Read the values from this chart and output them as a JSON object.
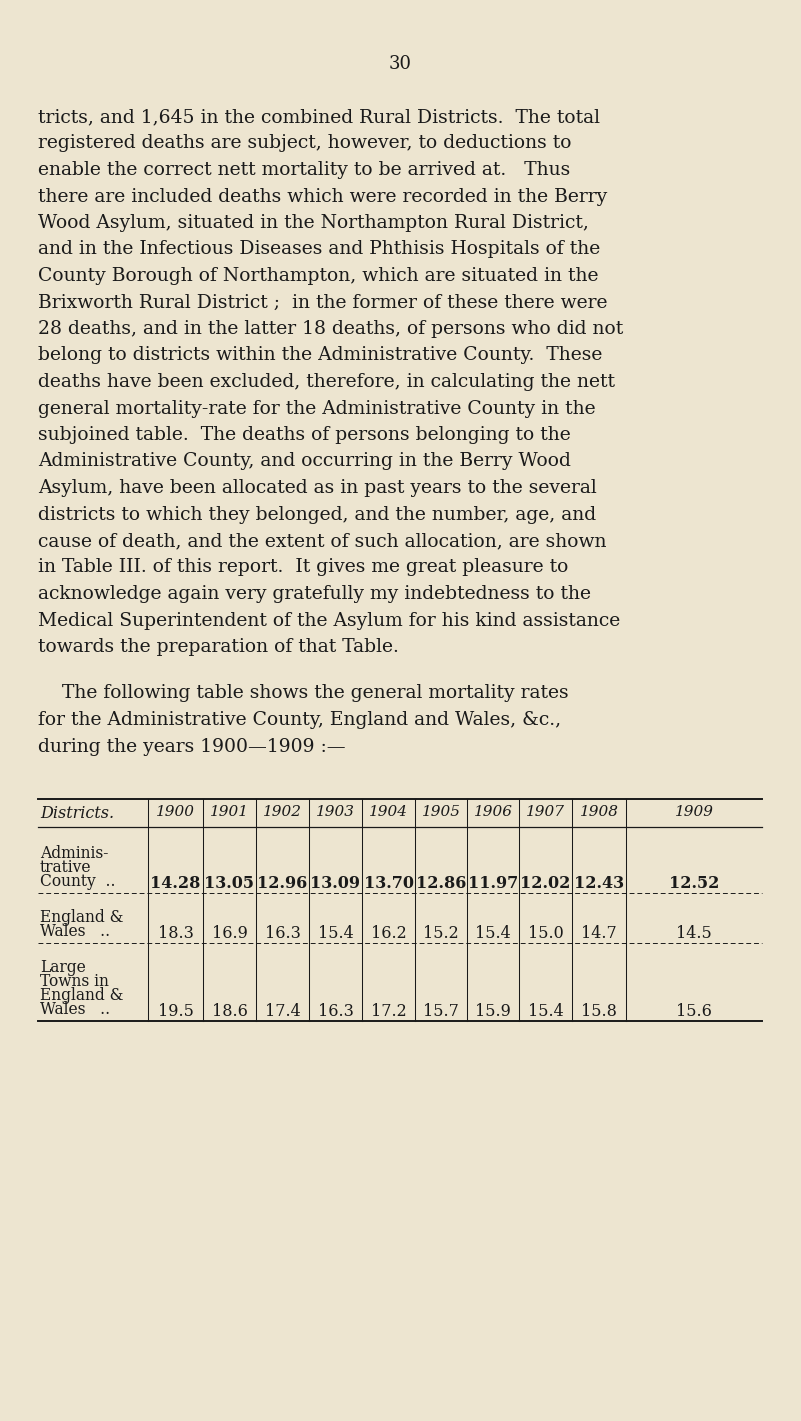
{
  "page_number": "30",
  "background_color": "#ede5d0",
  "text_color": "#1a1a1a",
  "paragraph_lines": [
    "tricts, and 1,645 in the combined Rural Districts.  The total",
    "registered deaths are subject, however, to deductions to",
    "enable the correct nett mortality to be arrived at.   Thus",
    "there are included deaths which were recorded in the Berry",
    "Wood Asylum, situated in the Northampton Rural District,",
    "and in the Infectious Diseases and Phthisis Hospitals of the",
    "County Borough of Northampton, which are situated in the",
    "Brixworth Rural District ;  in the former of these there were",
    "28 deaths, and in the latter 18 deaths, of persons who did not",
    "belong to districts within the Administrative County.  These",
    "deaths have been excluded, therefore, in calculating the nett",
    "general mortality-rate for the Administrative County in the",
    "subjoined table.  The deaths of persons belonging to the",
    "Administrative County, and occurring in the Berry Wood",
    "Asylum, have been allocated as in past years to the several",
    "districts to which they belonged, and the number, age, and",
    "cause of death, and the extent of such allocation, are shown",
    "in Table III. of this report.  It gives me great pleasure to",
    "acknowledge again very gratefully my indebtedness to the",
    "Medical Superintendent of the Asylum for his kind assistance",
    "towards the preparation of that Table."
  ],
  "intro_lines": [
    "    The following table shows the general mortality rates",
    "for the Administrative County, England and Wales, &c.,",
    "during the years 1900—1909 :—"
  ],
  "col_headers": [
    "Districts.",
    "1900",
    "1901",
    "1902",
    "1903",
    "1904",
    "1905",
    "1906",
    "1907",
    "1908",
    "1909"
  ],
  "row1_label": [
    "Adminis-",
    "trative",
    "County  .."
  ],
  "row1_values": [
    "14.28",
    "13.05",
    "12.96",
    "13.09",
    "13.70",
    "12.86",
    "11.97",
    "12.02",
    "12.43",
    "12.52"
  ],
  "row1_bold": true,
  "row2_label": [
    "England &",
    "Wales   .."
  ],
  "row2_values": [
    "18.3",
    "16.9",
    "16.3",
    "15.4",
    "16.2",
    "15.2",
    "15.4",
    "15.0",
    "14.7",
    "14.5"
  ],
  "row2_bold": false,
  "row3_label": [
    "Large",
    "Towns in",
    "England &",
    "Wales   .."
  ],
  "row3_values": [
    "19.5",
    "18.6",
    "17.4",
    "16.3",
    "17.2",
    "15.7",
    "15.9",
    "15.4",
    "15.8",
    "15.6"
  ],
  "row3_bold": false
}
